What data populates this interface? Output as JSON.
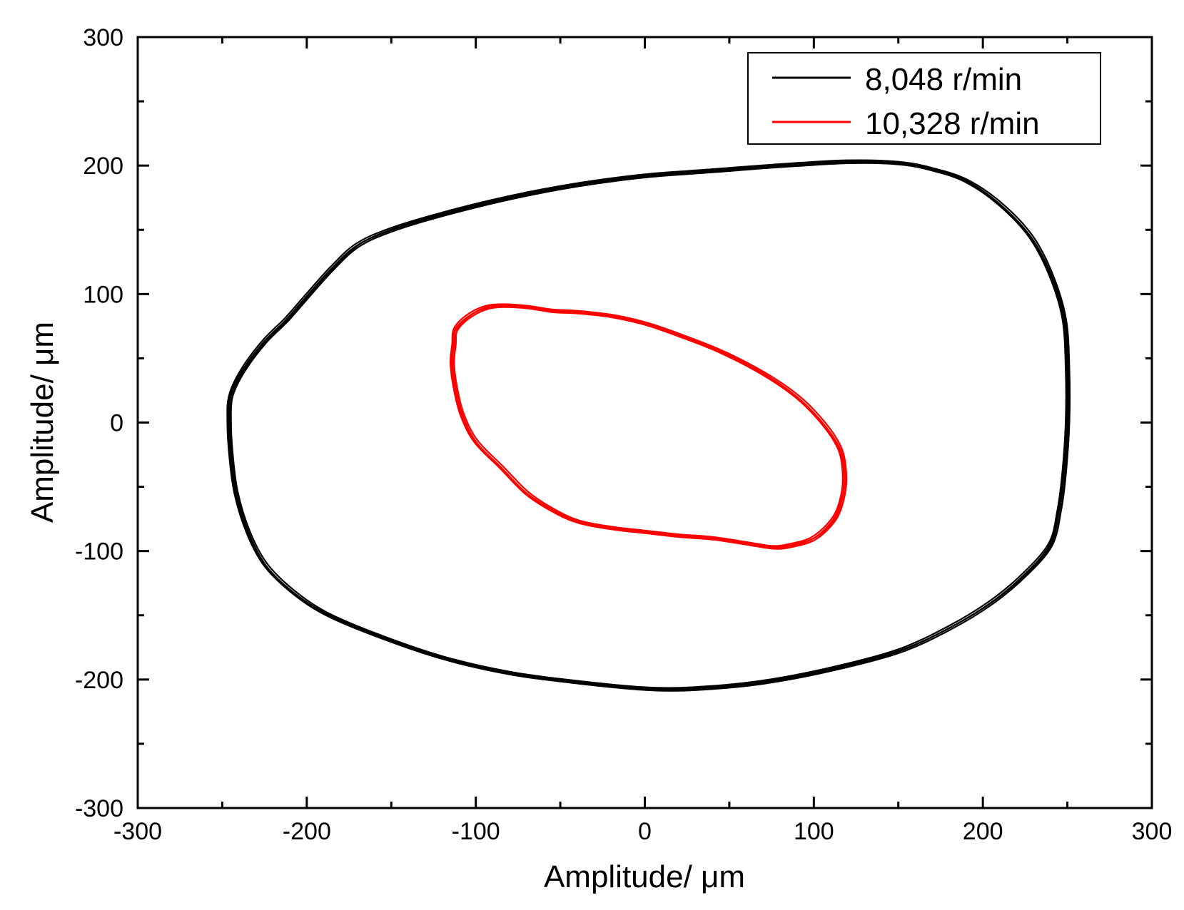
{
  "chart_data": {
    "type": "line",
    "title": "",
    "xlabel": "Amplitude/ μm",
    "ylabel": "Amplitude/ μm",
    "xlim": [
      -300,
      300
    ],
    "ylim": [
      -300,
      300
    ],
    "xticks": [
      -300,
      -200,
      -100,
      0,
      100,
      200,
      300
    ],
    "yticks": [
      -300,
      -200,
      -100,
      0,
      100,
      200,
      300
    ],
    "xtick_labels": [
      "-300",
      "-200",
      "-100",
      "0",
      "100",
      "200",
      "300"
    ],
    "ytick_labels": [
      "-300",
      "-200",
      "-100",
      "0",
      "100",
      "200",
      "300"
    ],
    "grid": false,
    "legend_position": "top-right",
    "series": [
      {
        "name": "8,048 r/min",
        "color": "#000000",
        "closed": true,
        "points": [
          [
            -246,
            0
          ],
          [
            -245,
            20
          ],
          [
            -238,
            40
          ],
          [
            -225,
            63
          ],
          [
            -212,
            80
          ],
          [
            -200,
            98
          ],
          [
            -185,
            120
          ],
          [
            -170,
            138
          ],
          [
            -150,
            150
          ],
          [
            -120,
            162
          ],
          [
            -80,
            175
          ],
          [
            -40,
            185
          ],
          [
            0,
            192
          ],
          [
            40,
            196
          ],
          [
            80,
            200
          ],
          [
            120,
            203
          ],
          [
            150,
            202
          ],
          [
            170,
            197
          ],
          [
            190,
            188
          ],
          [
            210,
            170
          ],
          [
            228,
            145
          ],
          [
            240,
            115
          ],
          [
            248,
            80
          ],
          [
            250,
            40
          ],
          [
            250,
            0
          ],
          [
            248,
            -40
          ],
          [
            245,
            -70
          ],
          [
            240,
            -95
          ],
          [
            225,
            -118
          ],
          [
            205,
            -140
          ],
          [
            180,
            -160
          ],
          [
            150,
            -178
          ],
          [
            110,
            -192
          ],
          [
            70,
            -202
          ],
          [
            30,
            -207
          ],
          [
            0,
            -207
          ],
          [
            -40,
            -202
          ],
          [
            -80,
            -195
          ],
          [
            -120,
            -183
          ],
          [
            -160,
            -165
          ],
          [
            -190,
            -148
          ],
          [
            -210,
            -130
          ],
          [
            -225,
            -110
          ],
          [
            -235,
            -85
          ],
          [
            -242,
            -55
          ],
          [
            -245,
            -25
          ]
        ]
      },
      {
        "name": "10,328 r/min",
        "color": "#ff0000",
        "closed": true,
        "points": [
          [
            -113,
            60
          ],
          [
            -112,
            72
          ],
          [
            -105,
            82
          ],
          [
            -95,
            89
          ],
          [
            -85,
            91
          ],
          [
            -70,
            90
          ],
          [
            -55,
            87
          ],
          [
            -40,
            86
          ],
          [
            -20,
            83
          ],
          [
            0,
            77
          ],
          [
            20,
            68
          ],
          [
            45,
            55
          ],
          [
            70,
            38
          ],
          [
            90,
            20
          ],
          [
            105,
            0
          ],
          [
            115,
            -20
          ],
          [
            118,
            -40
          ],
          [
            117,
            -58
          ],
          [
            112,
            -75
          ],
          [
            100,
            -90
          ],
          [
            85,
            -96
          ],
          [
            75,
            -97
          ],
          [
            60,
            -94
          ],
          [
            40,
            -90
          ],
          [
            20,
            -88
          ],
          [
            0,
            -85
          ],
          [
            -20,
            -82
          ],
          [
            -40,
            -77
          ],
          [
            -55,
            -68
          ],
          [
            -70,
            -55
          ],
          [
            -85,
            -35
          ],
          [
            -100,
            -15
          ],
          [
            -108,
            5
          ],
          [
            -112,
            25
          ],
          [
            -114,
            45
          ]
        ]
      }
    ]
  }
}
